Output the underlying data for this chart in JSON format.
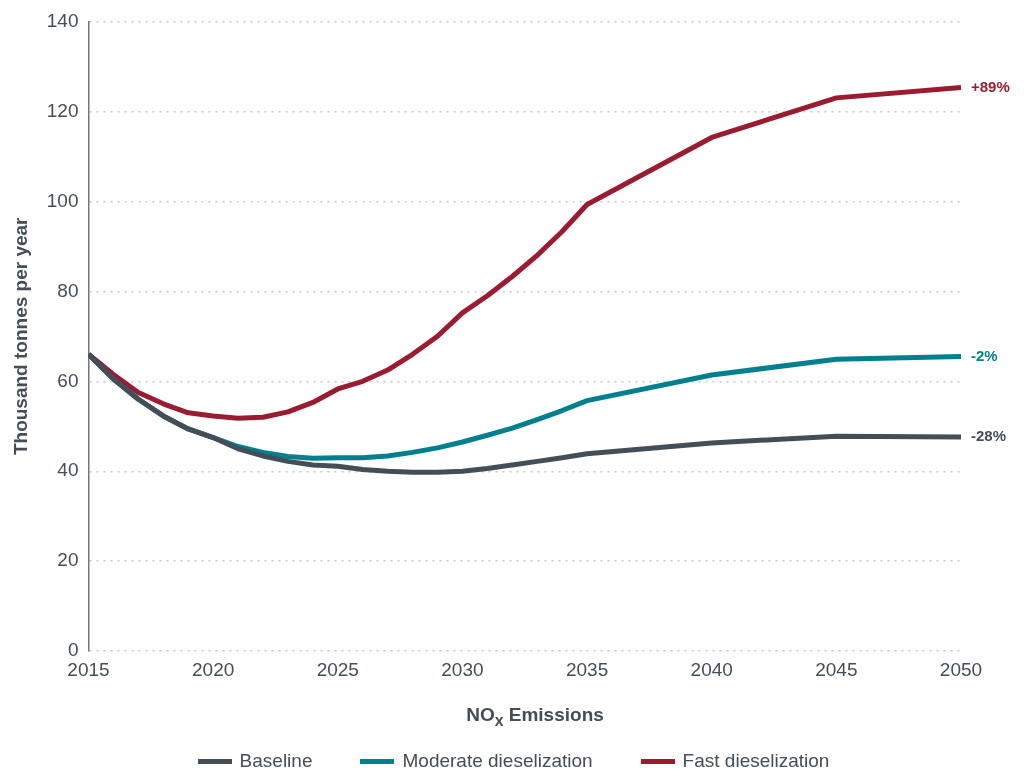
{
  "chart_data": {
    "type": "line",
    "xlabel": "NO$_{x}$ Emissions",
    "ylabel": "Thousand tonnes per year",
    "x": [
      2015,
      2016,
      2017,
      2018,
      2019,
      2020,
      2021,
      2022,
      2023,
      2024,
      2025,
      2026,
      2027,
      2028,
      2029,
      2030,
      2031,
      2032,
      2033,
      2034,
      2035,
      2040,
      2045,
      2050
    ],
    "series": [
      {
        "name": "Baseline",
        "color": "#444e57",
        "values": [
          66,
          60.5,
          56,
          52.3,
          49.4,
          47.5,
          45,
          43.4,
          42.2,
          41.4,
          41.1,
          40.4,
          40,
          39.8,
          39.8,
          40,
          40.6,
          41.4,
          42.2,
          43,
          43.9,
          46.3,
          47.8,
          47.6
        ]
      },
      {
        "name": "Moderate dieselization",
        "color": "#007f8f",
        "values": [
          66,
          60.5,
          56,
          52.3,
          49.4,
          47.5,
          45.5,
          44.2,
          43.3,
          42.9,
          43,
          43,
          43.4,
          44.2,
          45.2,
          46.5,
          48,
          49.6,
          51.5,
          53.5,
          55.7,
          61.4,
          64.9,
          65.5
        ]
      },
      {
        "name": "Fast dieselization",
        "color": "#9b1b30",
        "values": [
          66,
          61.5,
          57.5,
          55,
          53,
          52.3,
          51.8,
          52,
          53.2,
          55.3,
          58.3,
          60,
          62.5,
          66,
          70,
          75.2,
          79,
          83.3,
          88,
          93.3,
          99.3,
          114.2,
          123,
          125.3
        ]
      }
    ],
    "annotations": [
      "-28%",
      "-2%",
      "+89%"
    ],
    "xlim": [
      2015,
      2050
    ],
    "xticks": [
      2015,
      2020,
      2025,
      2030,
      2035,
      2040,
      2045,
      2050
    ],
    "ylim": [
      0,
      140
    ],
    "yticks": [
      0,
      20,
      40,
      60,
      80,
      100,
      120,
      140
    ],
    "grid": "y",
    "legend": "bottom",
    "marker": "none",
    "line_style": "solid"
  }
}
